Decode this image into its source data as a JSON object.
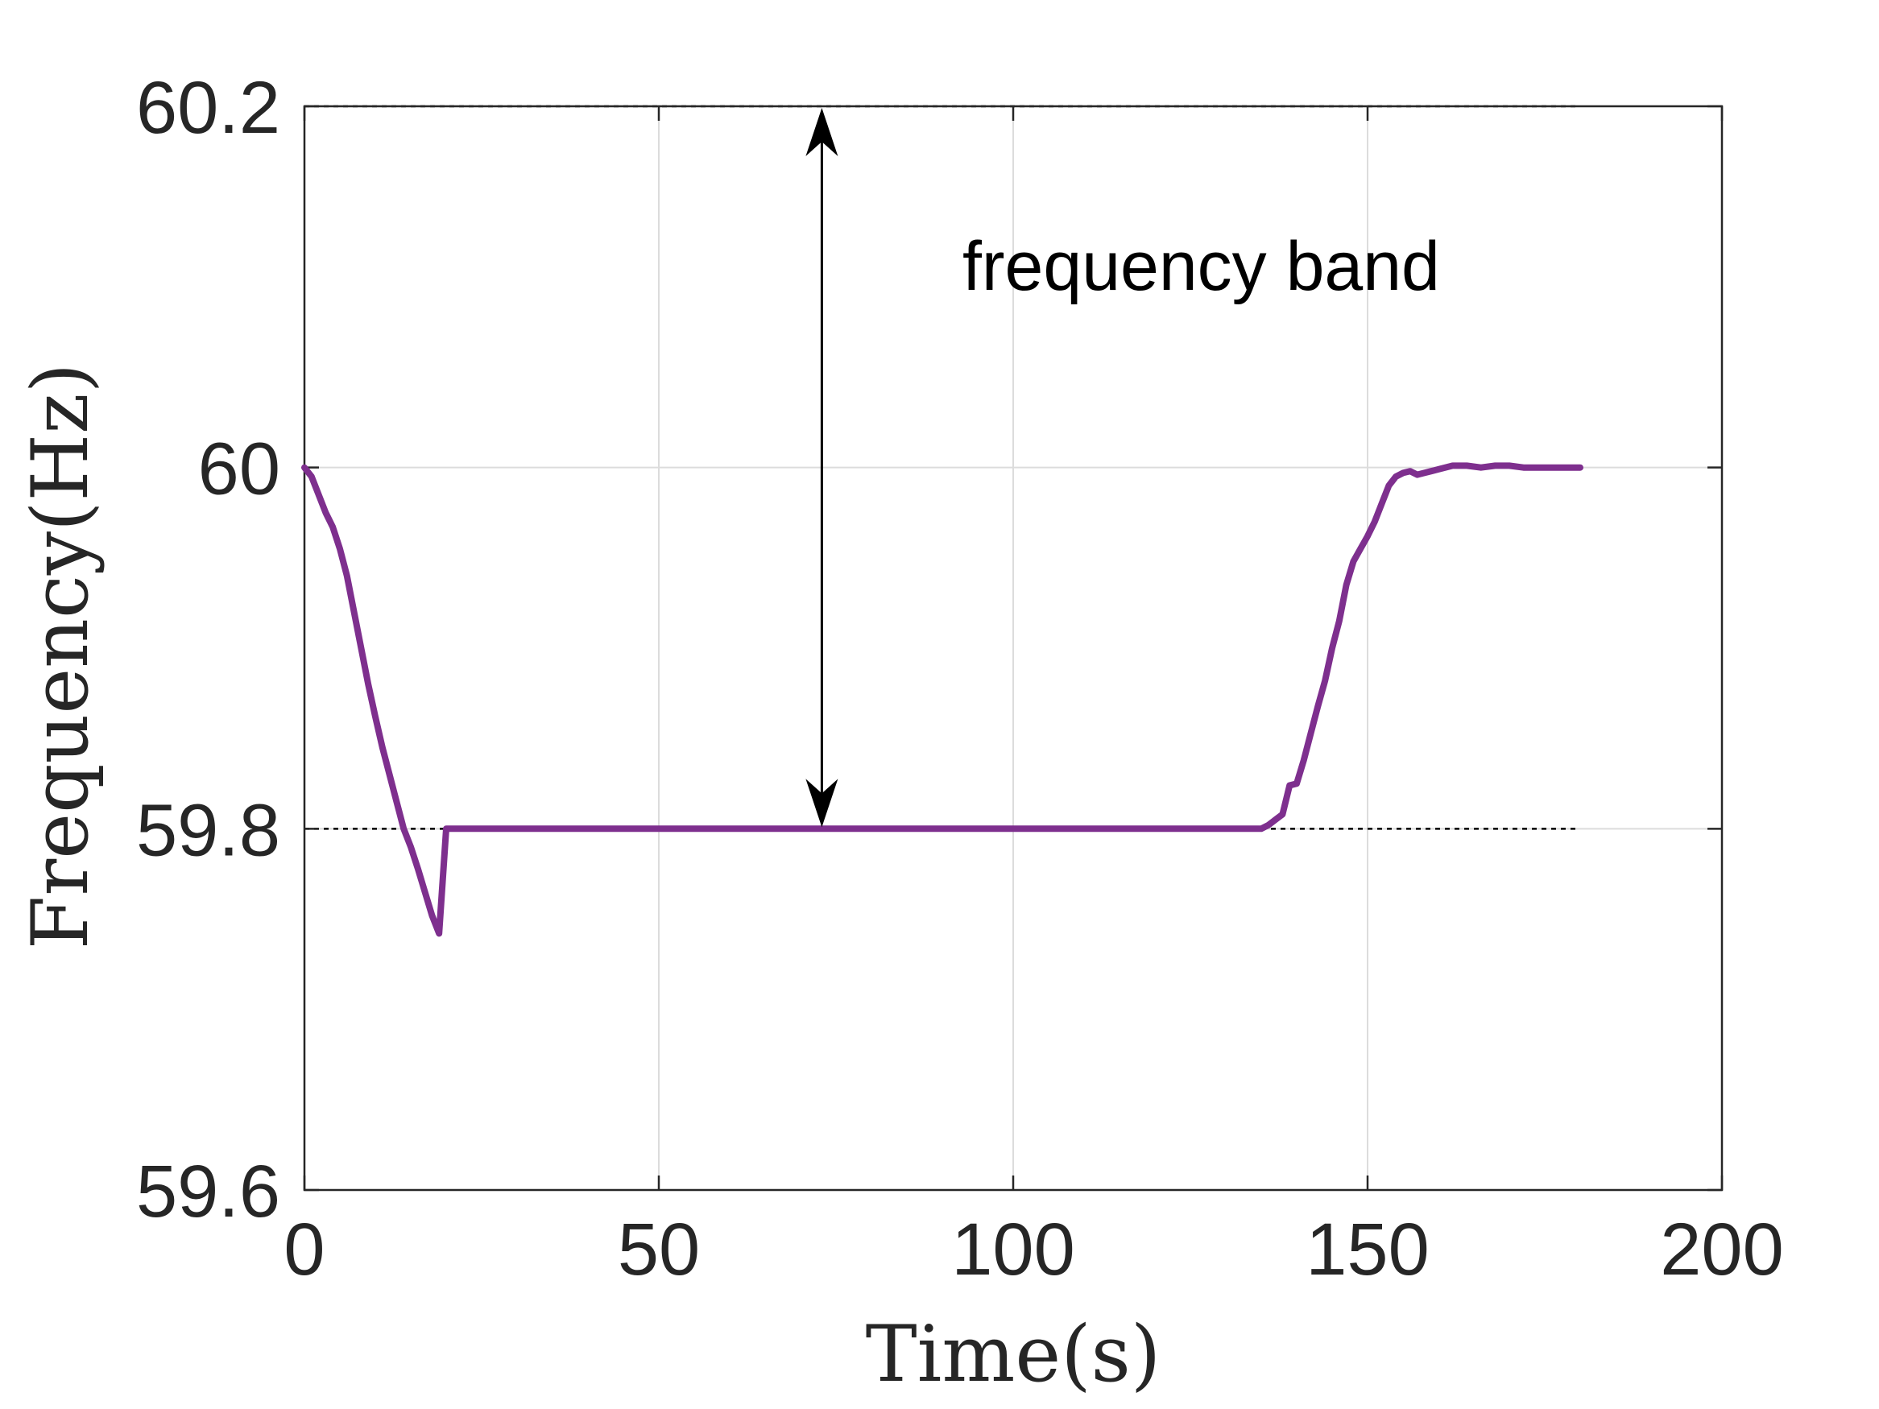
{
  "chart_data": {
    "type": "line",
    "title": "",
    "xlabel": "Time(s)",
    "ylabel": "Frequency(Hz)",
    "xlim": [
      0,
      200
    ],
    "ylim": [
      59.6,
      60.2
    ],
    "xticks": [
      0,
      50,
      100,
      150,
      200
    ],
    "yticks": [
      59.6,
      59.8,
      60,
      60.2
    ],
    "xtick_labels": [
      "0",
      "50",
      "100",
      "150",
      "200"
    ],
    "ytick_labels": [
      "59.6",
      "59.8",
      "60",
      "60.2"
    ],
    "grid": true,
    "legend": "none",
    "reference_lines": [
      {
        "y": 60.2,
        "x_range": [
          0,
          180
        ],
        "style": "dotted"
      },
      {
        "y": 59.8,
        "x_range": [
          0,
          180
        ],
        "style": "dotted"
      }
    ],
    "annotation": {
      "text": "frequency band",
      "arrow_x": 73,
      "arrow_from": 60.2,
      "arrow_to": 59.8
    },
    "series": [
      {
        "color": "#7E2F8E",
        "x": [
          0,
          1,
          2,
          3,
          4,
          5,
          6,
          7,
          8,
          9,
          10,
          11,
          12,
          13,
          14,
          15,
          16,
          17,
          18,
          19,
          20,
          25,
          40,
          60,
          80,
          100,
          120,
          130,
          135,
          136,
          137,
          138,
          139,
          140,
          141,
          142,
          143,
          144,
          145,
          146,
          147,
          148,
          149,
          150,
          151,
          152,
          153,
          154,
          155,
          156,
          157,
          158,
          160,
          162,
          164,
          166,
          168,
          170,
          172,
          174,
          176,
          178,
          180
        ],
        "y": [
          60.0,
          59.995,
          59.985,
          59.975,
          59.967,
          59.955,
          59.94,
          59.92,
          59.9,
          59.88,
          59.862,
          59.845,
          59.83,
          59.815,
          59.8,
          59.79,
          59.778,
          59.765,
          59.752,
          59.742,
          59.8,
          59.8,
          59.8,
          59.8,
          59.8,
          59.8,
          59.8,
          59.8,
          59.8,
          59.802,
          59.805,
          59.808,
          59.824,
          59.825,
          59.838,
          59.853,
          59.868,
          59.882,
          59.9,
          59.915,
          59.935,
          59.948,
          59.955,
          59.962,
          59.97,
          59.98,
          59.99,
          59.995,
          59.997,
          59.998,
          59.996,
          59.997,
          59.999,
          60.001,
          60.001,
          60.0,
          60.001,
          60.001,
          60.0,
          60.0,
          60.0,
          60.0,
          60.0
        ]
      }
    ]
  }
}
